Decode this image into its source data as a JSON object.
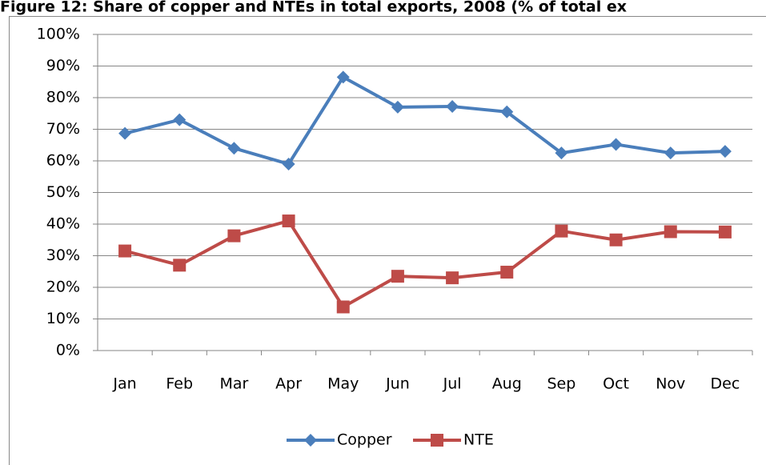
{
  "chart_data": {
    "type": "line",
    "title": "Figure 12: Share of copper and NTEs in total exports, 2008 (% of total ex",
    "categories": [
      "Jan",
      "Feb",
      "Mar",
      "Apr",
      "May",
      "Jun",
      "Jul",
      "Aug",
      "Sep",
      "Oct",
      "Nov",
      "Dec"
    ],
    "series": [
      {
        "name": "Copper",
        "color": "#4a7ebb",
        "marker": "diamond",
        "values": [
          68.7,
          73,
          64,
          59,
          86.5,
          77,
          77.2,
          75.5,
          62.5,
          65.2,
          62.5,
          63
        ]
      },
      {
        "name": "NTE",
        "color": "#be4b48",
        "marker": "square",
        "values": [
          31.5,
          27,
          36.3,
          41,
          13.8,
          23.5,
          23,
          24.8,
          37.8,
          35,
          37.6,
          37.5
        ]
      }
    ],
    "ylim": [
      0,
      100
    ],
    "yticks": [
      {
        "value": 0,
        "label": "0%"
      },
      {
        "value": 10,
        "label": "10%"
      },
      {
        "value": 20,
        "label": "20%"
      },
      {
        "value": 30,
        "label": "30%"
      },
      {
        "value": 40,
        "label": "40%"
      },
      {
        "value": 50,
        "label": "50%"
      },
      {
        "value": 60,
        "label": "60%"
      },
      {
        "value": 70,
        "label": "70%"
      },
      {
        "value": 80,
        "label": "80%"
      },
      {
        "value": 90,
        "label": "90%"
      },
      {
        "value": 100,
        "label": "100%"
      }
    ],
    "grid": true,
    "legend": "bottom"
  }
}
